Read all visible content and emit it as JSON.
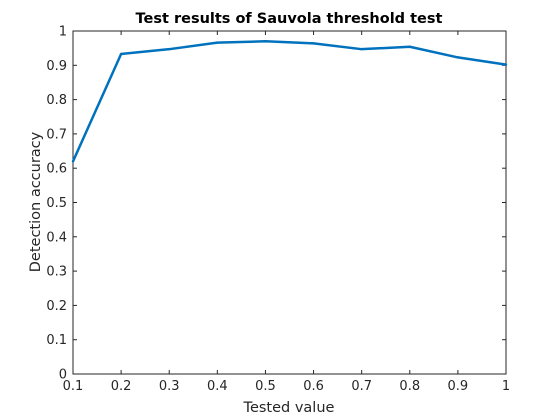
{
  "chart_data": {
    "type": "line",
    "title": "Test results of Sauvola threshold test",
    "xlabel": "Tested value",
    "ylabel": "Detection accuracy",
    "xlim": [
      0.1,
      1
    ],
    "ylim": [
      0,
      1
    ],
    "xticks": [
      "0.1",
      "0.2",
      "0.3",
      "0.4",
      "0.5",
      "0.6",
      "0.7",
      "0.8",
      "0.9",
      "1"
    ],
    "yticks": [
      "0",
      "0.1",
      "0.2",
      "0.3",
      "0.4",
      "0.5",
      "0.6",
      "0.7",
      "0.8",
      "0.9",
      "1"
    ],
    "grid": false,
    "series": [
      {
        "color": "#0072bd",
        "x": [
          0.1,
          0.2,
          0.3,
          0.4,
          0.5,
          0.6,
          0.7,
          0.8,
          0.9,
          1.0
        ],
        "y": [
          0.62,
          0.933,
          0.947,
          0.966,
          0.97,
          0.964,
          0.947,
          0.954,
          0.923,
          0.902
        ]
      }
    ]
  }
}
